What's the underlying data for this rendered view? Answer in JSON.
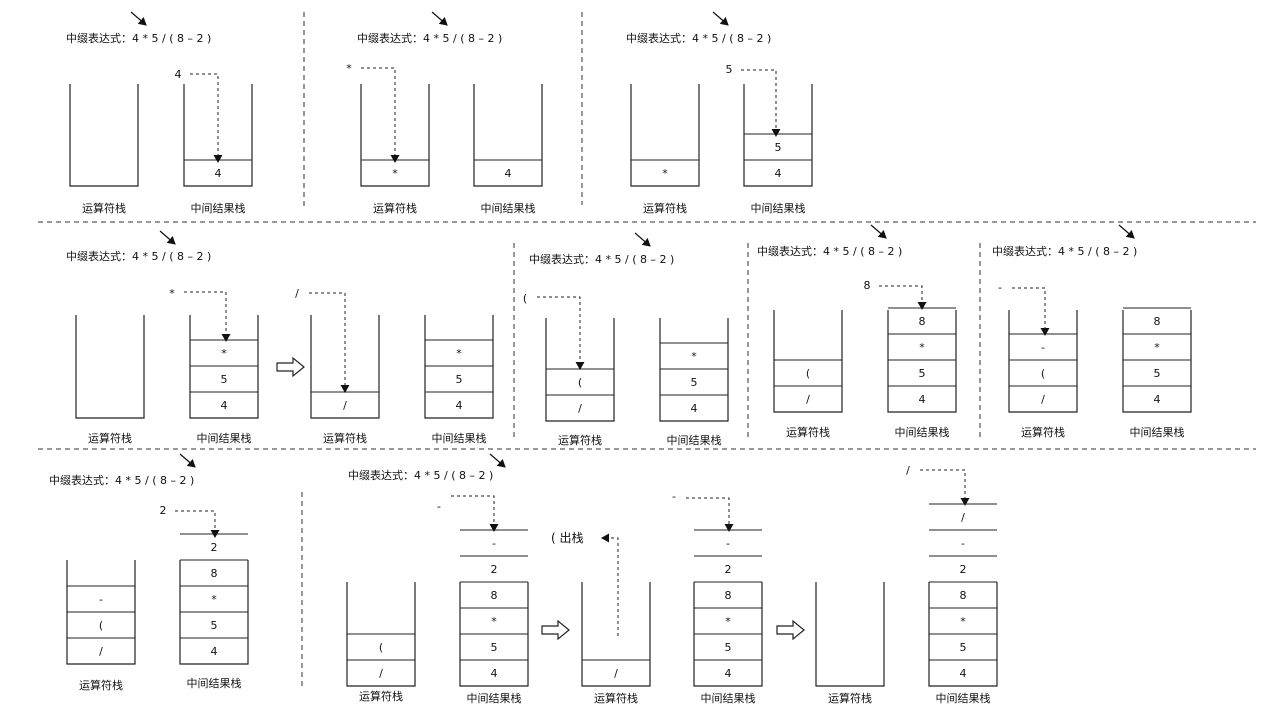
{
  "labels": {
    "expr": "中缀表达式：4 * 5 / ( 8 – 2 )",
    "op_stack": "运算符栈",
    "mid_stack": "中间结果栈",
    "pop_note": "( 出栈"
  },
  "steps": [
    {
      "op_stack": [],
      "mid_stack": [
        "4"
      ],
      "incoming": "4"
    },
    {
      "op_stack": [
        "*"
      ],
      "mid_stack": [
        "4"
      ],
      "incoming": "*"
    },
    {
      "op_stack": [
        "*"
      ],
      "mid_stack": [
        "5",
        "4"
      ],
      "incoming": "5"
    },
    {
      "op_stack": [],
      "mid_stack": [
        "*",
        "5",
        "4"
      ],
      "incoming": "*"
    },
    {
      "op_stack": [
        "/"
      ],
      "mid_stack": [
        "*",
        "5",
        "4"
      ],
      "incoming": "/"
    },
    {
      "op_stack": [
        "(",
        "/"
      ],
      "mid_stack": [
        "*",
        "5",
        "4"
      ],
      "incoming": "("
    },
    {
      "op_stack": [
        "(",
        "/"
      ],
      "mid_stack": [
        "8",
        "*",
        "5",
        "4"
      ],
      "incoming": "8"
    },
    {
      "op_stack": [
        "-",
        "(",
        "/"
      ],
      "mid_stack": [
        "8",
        "*",
        "5",
        "4"
      ],
      "incoming": "-"
    },
    {
      "op_stack": [
        "-",
        "(",
        "/"
      ],
      "mid_stack": [
        "2",
        "8",
        "*",
        "5",
        "4"
      ],
      "incoming": "2"
    },
    {
      "op_stack": [
        "(",
        "/"
      ],
      "mid_stack": [
        "-",
        "2",
        "8",
        "*",
        "5",
        "4"
      ],
      "incoming": "-"
    },
    {
      "op_stack": [
        "/"
      ],
      "mid_stack": [
        "-",
        "2",
        "8",
        "*",
        "5",
        "4"
      ],
      "incoming": "-"
    },
    {
      "op_stack": [],
      "mid_stack": [
        "/",
        "-",
        "2",
        "8",
        "*",
        "5",
        "4"
      ],
      "incoming": "/"
    }
  ]
}
